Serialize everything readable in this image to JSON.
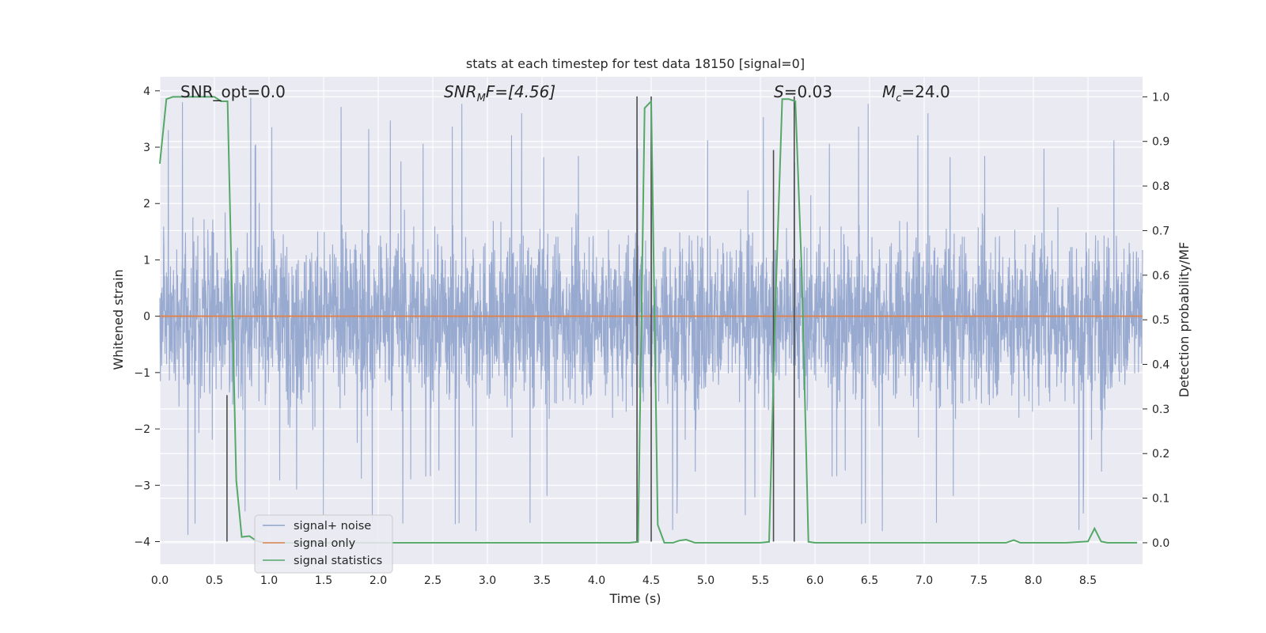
{
  "chart_data": {
    "type": "line",
    "title": "stats at each timestep for test data 18150 [signal=0]",
    "xlabel": "Time (s)",
    "ylabel_left": "Whitened strain",
    "ylabel_right": "Detection probability/MF",
    "xlim": [
      0.0,
      9.0
    ],
    "ylim_left": [
      -4.4,
      4.25
    ],
    "ylim_right": [
      -0.048,
      1.045
    ],
    "grid": true,
    "x_ticks": [
      "0.0",
      "0.5",
      "1.0",
      "1.5",
      "2.0",
      "2.5",
      "3.0",
      "3.5",
      "4.0",
      "4.5",
      "5.0",
      "5.5",
      "6.0",
      "6.5",
      "7.0",
      "7.5",
      "8.0",
      "8.5"
    ],
    "y_left_ticks": [
      "4",
      "3",
      "2",
      "1",
      "0",
      "−1",
      "−2",
      "−3",
      "−4"
    ],
    "y_right_ticks": [
      "1.0",
      "0.9",
      "0.8",
      "0.7",
      "0.6",
      "0.5",
      "0.4",
      "0.3",
      "0.2",
      "0.1",
      "0.0"
    ],
    "legend_placement": "lower-left",
    "annotations": {
      "snr_opt": "SNR_opt=0.0",
      "snr_mf_main": "SNR",
      "snr_mf_sub": "M",
      "snr_mf_rest": "F=[4.56]",
      "s_main": "S",
      "s_rest": "=0.03",
      "mc_main": "M",
      "mc_sub": "c",
      "mc_rest": "=24.0"
    },
    "series": [
      {
        "name": "signal+ noise",
        "color": "#8fa3cc",
        "note_values": "whitened strain noise, amplitude roughly within [-3.9, 3.9]",
        "envelope": {
          "typical_high": 2.2,
          "typical_low": -1.7,
          "peak_high": 3.9,
          "peak_low": -3.9
        }
      },
      {
        "name": "signal only",
        "color": "#dd8452",
        "x": [
          0.0,
          9.0
        ],
        "y": [
          0.0,
          0.0
        ]
      },
      {
        "name": "signal statistics",
        "color": "#55a868",
        "x": [
          0.0,
          0.06,
          0.12,
          0.2,
          0.3,
          0.4,
          0.5,
          0.56,
          0.62,
          0.7,
          0.75,
          0.82,
          0.88,
          0.95,
          1.05,
          1.2,
          1.5,
          2.0,
          2.5,
          3.0,
          3.5,
          4.0,
          4.3,
          4.38,
          4.44,
          4.5,
          4.56,
          4.62,
          4.7,
          4.76,
          4.82,
          4.9,
          5.0,
          5.2,
          5.5,
          5.58,
          5.64,
          5.7,
          5.76,
          5.82,
          5.88,
          5.94,
          6.0,
          6.5,
          7.0,
          7.5,
          7.75,
          7.82,
          7.88,
          7.95,
          8.0,
          8.3,
          8.5,
          8.56,
          8.62,
          8.68,
          8.75,
          8.95
        ],
        "y": [
          0.85,
          0.995,
          1.0,
          1.0,
          1.0,
          1.0,
          1.0,
          0.99,
          0.99,
          0.14,
          0.013,
          0.015,
          0.005,
          0.0,
          0.0,
          0.0,
          0.0,
          0.0,
          0.0,
          0.0,
          0.0,
          0.0,
          0.0,
          0.002,
          0.975,
          0.99,
          0.04,
          0.0,
          0.0,
          0.005,
          0.007,
          0.0,
          0.0,
          0.0,
          0.0,
          0.002,
          0.55,
          0.995,
          0.995,
          0.99,
          0.6,
          0.002,
          0.0,
          0.0,
          0.0,
          0.0,
          0.0,
          0.006,
          0.0,
          0.0,
          0.0,
          0.0,
          0.003,
          0.032,
          0.003,
          0.0,
          0.0,
          0.0
        ]
      }
    ],
    "vertical_markers": [
      {
        "x": 0.615,
        "y_left_top": -1.4,
        "y_left_bottom": -4.0
      },
      {
        "x": 4.37,
        "y_left_top": 3.9,
        "y_left_bottom": -4.0
      },
      {
        "x": 4.5,
        "y_left_top": 3.9,
        "y_left_bottom": -4.0
      },
      {
        "x": 5.62,
        "y_left_top": 2.95,
        "y_left_bottom": -4.0
      },
      {
        "x": 5.81,
        "y_left_top": 3.9,
        "y_left_bottom": -4.0
      }
    ],
    "marker_color": "#4c4c4c"
  }
}
